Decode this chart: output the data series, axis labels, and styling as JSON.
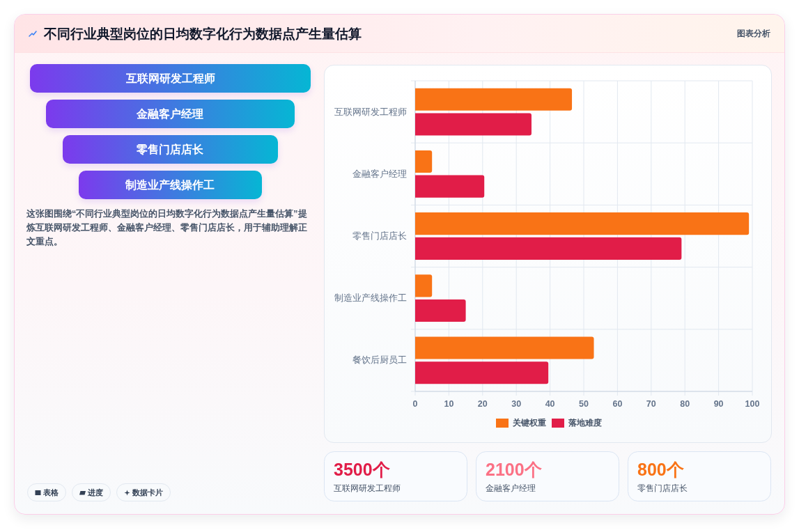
{
  "chart_data": [
    {
      "type": "other",
      "title": "不同行业典型岗位的日均数字化行为数据点产生量估算",
      "subtitle": "图表分析",
      "categories": [
        "互联网研发工程师",
        "金融客户经理",
        "零售门店店长",
        "制造业产线操作工"
      ],
      "annotations": [
        "这张图围绕“不同行业典型岗位的日均数字化行为数据点产生量估算”提炼互联网研发工程师、金融客户经理、零售门店店长，用于辅助理解正文重点。",
        "表格",
        "进度",
        "数据卡片"
      ]
    },
    {
      "type": "bar",
      "orientation": "horizontal",
      "categories": [
        "互联网研发工程师",
        "金融客户经理",
        "零售门店店长",
        "制造业产线操作工",
        "餐饮后厨员工"
      ],
      "series": [
        {
          "name": "关键权重",
          "color": "#f97316",
          "values": [
            46.5,
            5,
            99,
            5,
            53
          ]
        },
        {
          "name": "落地难度",
          "color": "#e11d48",
          "values": [
            34.5,
            20.5,
            79,
            15,
            39.5
          ]
        }
      ],
      "xlim": [
        0,
        100
      ],
      "xticks": [
        0,
        10,
        20,
        30,
        40,
        50,
        60,
        70,
        80,
        90,
        100
      ],
      "grid": true,
      "legend": "bottom"
    },
    {
      "type": "other",
      "categories": [
        "互联网研发工程师",
        "金融客户经理",
        "零售门店店长"
      ],
      "value_labels": [
        "3500个",
        "2100个",
        "800个"
      ],
      "colors": [
        "#e11d48",
        "#fb7185",
        "#f97316"
      ]
    }
  ]
}
